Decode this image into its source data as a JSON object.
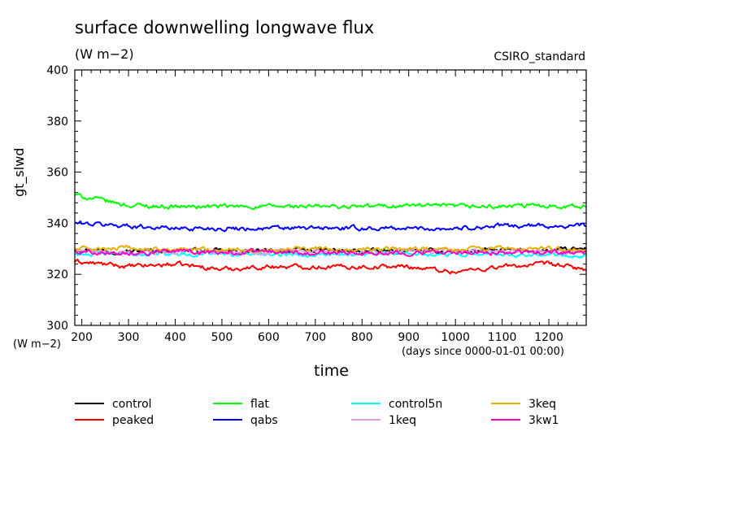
{
  "chart_data": {
    "type": "line",
    "title": "surface downwelling longwave flux",
    "subtitle": "(W m−2)",
    "source_label": "CSIRO_standard",
    "xlabel": "time",
    "x_units": "(days since 0000-01-01 00:00)",
    "ylabel": "gt_slwd",
    "y_units": "(W m−2)",
    "xlim": [
      185,
      1280
    ],
    "ylim": [
      300,
      400
    ],
    "x_ticks": [
      200,
      300,
      400,
      500,
      600,
      700,
      800,
      900,
      1000,
      1100,
      1200
    ],
    "y_ticks": [
      300,
      320,
      340,
      360,
      380,
      400
    ],
    "grid": false,
    "legend_position": "below",
    "series": [
      {
        "name": "control",
        "color": "#000000",
        "x": [
          185,
          300,
          400,
          500,
          600,
          700,
          800,
          900,
          1000,
          1100,
          1200,
          1280
        ],
        "y": [
          330,
          329,
          329.5,
          329,
          329,
          329.5,
          329,
          329,
          329,
          329.5,
          329,
          330
        ]
      },
      {
        "name": "peaked",
        "color": "#ff0000",
        "x": [
          185,
          300,
          400,
          500,
          600,
          700,
          800,
          900,
          1000,
          1100,
          1200,
          1280
        ],
        "y": [
          325,
          323,
          324,
          322,
          323,
          323,
          323,
          323,
          321,
          323,
          324,
          322
        ]
      },
      {
        "name": "flat",
        "color": "#00ff00",
        "x": [
          185,
          300,
          400,
          500,
          600,
          700,
          800,
          900,
          1000,
          1100,
          1200,
          1280
        ],
        "y": [
          351,
          347,
          346.5,
          346.5,
          346.5,
          346.5,
          346.5,
          347,
          346.5,
          346.5,
          347,
          346.5
        ]
      },
      {
        "name": "qabs",
        "color": "#0000ff",
        "x": [
          185,
          300,
          400,
          500,
          600,
          700,
          800,
          900,
          1000,
          1100,
          1200,
          1280
        ],
        "y": [
          340,
          339,
          338,
          338,
          338,
          338,
          338,
          338,
          338,
          339,
          339,
          339
        ]
      },
      {
        "name": "control5n",
        "color": "#00ffff",
        "x": [
          185,
          300,
          400,
          500,
          600,
          700,
          800,
          900,
          1000,
          1100,
          1200,
          1280
        ],
        "y": [
          328,
          328,
          328,
          328,
          328,
          328,
          328,
          328,
          328,
          328,
          328,
          327.5
        ]
      },
      {
        "name": "1keq",
        "color": "#e39de3",
        "x": [
          185,
          300,
          400,
          500,
          600,
          700,
          800,
          900,
          1000,
          1100,
          1200,
          1280
        ],
        "y": [
          329,
          328.5,
          328.5,
          329,
          328.5,
          329,
          328.5,
          329,
          329,
          329.5,
          329,
          328.5
        ]
      },
      {
        "name": "3keq",
        "color": "#e6b000",
        "x": [
          185,
          300,
          400,
          500,
          600,
          700,
          800,
          900,
          1000,
          1100,
          1200,
          1280
        ],
        "y": [
          330,
          330,
          329.5,
          330,
          329.5,
          330,
          329.5,
          330,
          329.5,
          330,
          330,
          330
        ]
      },
      {
        "name": "3kw1",
        "color": "#ff00c8",
        "x": [
          185,
          300,
          400,
          500,
          600,
          700,
          800,
          900,
          1000,
          1100,
          1200,
          1280
        ],
        "y": [
          329,
          328.5,
          329,
          328.5,
          329,
          328.5,
          328.5,
          328.5,
          328.5,
          328.5,
          328.5,
          328.5
        ]
      }
    ]
  }
}
